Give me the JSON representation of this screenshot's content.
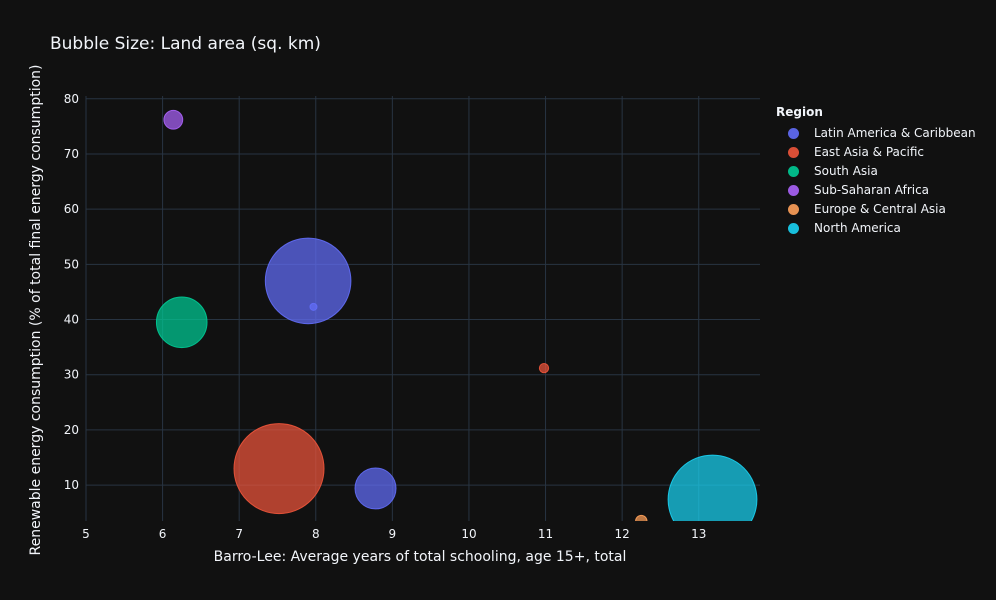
{
  "chart_data": {
    "type": "scatter",
    "title": "Bubble Size: Land area (sq. km)",
    "xlabel": "Barro-Lee: Average years of total schooling, age 15+, total",
    "ylabel": "Renewable energy consumption (% of total final energy consumption)",
    "xlim": [
      5,
      13.8
    ],
    "ylim": [
      3.5,
      80.5
    ],
    "x_ticks": [
      "5",
      "6",
      "7",
      "8",
      "9",
      "10",
      "11",
      "12",
      "13"
    ],
    "y_ticks": [
      "10",
      "20",
      "30",
      "40",
      "50",
      "60",
      "70",
      "80"
    ],
    "grid": true,
    "legend_title": "Region",
    "legend_position": "right",
    "series": [
      {
        "name": "Latin America & Caribbean",
        "color": "#636efa",
        "points": [
          {
            "x": 7.9,
            "y": 47,
            "size": 8500000
          },
          {
            "x": 8.78,
            "y": 9.4,
            "size": 1950000
          },
          {
            "x": 7.97,
            "y": 42.3,
            "size": 11000
          }
        ]
      },
      {
        "name": "East Asia & Pacific",
        "color": "#ef553b",
        "points": [
          {
            "x": 7.52,
            "y": 13,
            "size": 9400000
          },
          {
            "x": 10.98,
            "y": 31.2,
            "size": 100000
          }
        ]
      },
      {
        "name": "South Asia",
        "color": "#00cc96",
        "points": [
          {
            "x": 6.25,
            "y": 39.5,
            "size": 2970000
          }
        ]
      },
      {
        "name": "Sub-Saharan Africa",
        "color": "#ab63fa",
        "points": [
          {
            "x": 6.14,
            "y": 76.2,
            "size": 410000
          }
        ]
      },
      {
        "name": "Europe & Central Asia",
        "color": "#ffa15a",
        "points": [
          {
            "x": 12.25,
            "y": 3.5,
            "size": 150000
          }
        ]
      },
      {
        "name": "North America",
        "color": "#19d3f3",
        "points": [
          {
            "x": 13.18,
            "y": 7.4,
            "size": 9150000
          }
        ]
      }
    ]
  }
}
